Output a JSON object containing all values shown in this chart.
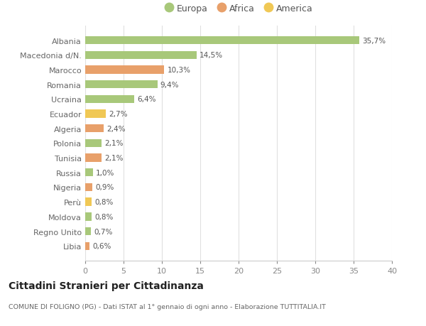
{
  "countries": [
    "Albania",
    "Macedonia d/N.",
    "Marocco",
    "Romania",
    "Ucraina",
    "Ecuador",
    "Algeria",
    "Polonia",
    "Tunisia",
    "Russia",
    "Nigeria",
    "Perù",
    "Moldova",
    "Regno Unito",
    "Libia"
  ],
  "values": [
    35.7,
    14.5,
    10.3,
    9.4,
    6.4,
    2.7,
    2.4,
    2.1,
    2.1,
    1.0,
    0.9,
    0.8,
    0.8,
    0.7,
    0.6
  ],
  "labels": [
    "35,7%",
    "14,5%",
    "10,3%",
    "9,4%",
    "6,4%",
    "2,7%",
    "2,4%",
    "2,1%",
    "2,1%",
    "1,0%",
    "0,9%",
    "0,8%",
    "0,8%",
    "0,7%",
    "0,6%"
  ],
  "continents": [
    "Europa",
    "Europa",
    "Africa",
    "Europa",
    "Europa",
    "America",
    "Africa",
    "Europa",
    "Africa",
    "Europa",
    "Africa",
    "America",
    "Europa",
    "Europa",
    "Africa"
  ],
  "colors": {
    "Europa": "#a8c87a",
    "Africa": "#e8a06a",
    "America": "#f0c855"
  },
  "bg_color": "#ffffff",
  "grid_color": "#e0e0e0",
  "legend_labels": [
    "Europa",
    "Africa",
    "America"
  ],
  "title_main": "Cittadini Stranieri per Cittadinanza",
  "title_sub": "COMUNE DI FOLIGNO (PG) - Dati ISTAT al 1° gennaio di ogni anno - Elaborazione TUTTITALIA.IT",
  "xlim": [
    0,
    40
  ],
  "xticks": [
    0,
    5,
    10,
    15,
    20,
    25,
    30,
    35,
    40
  ],
  "bar_height": 0.55
}
